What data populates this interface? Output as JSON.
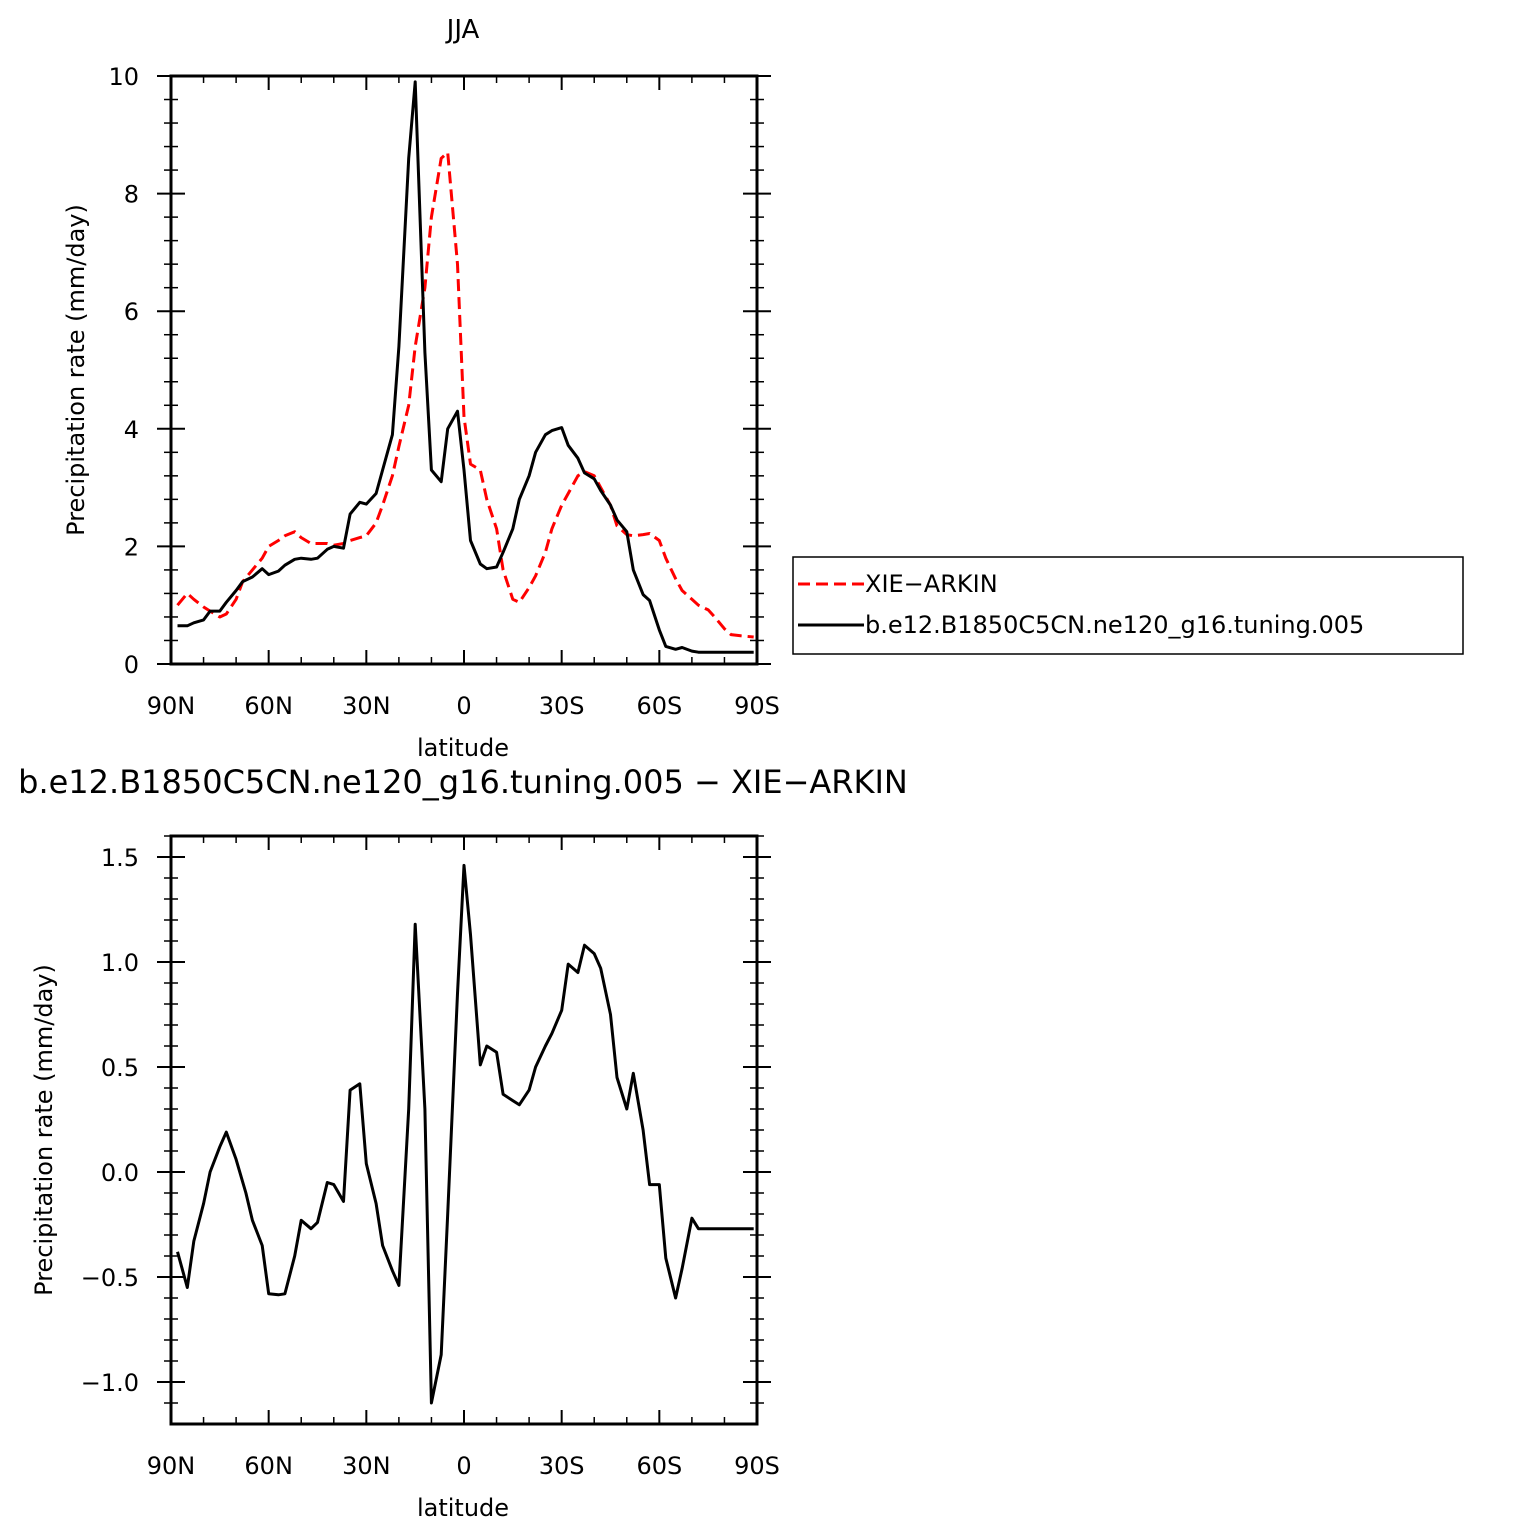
{
  "chart_data": [
    {
      "type": "line",
      "title": "JJA",
      "xlabel": "latitude",
      "ylabel": "Precipitation rate (mm/day)",
      "xlim": [
        90,
        -90
      ],
      "ylim": [
        0,
        10
      ],
      "x_ticks": [
        90,
        60,
        30,
        0,
        -30,
        -60,
        -90
      ],
      "x_tick_labels": [
        "90N",
        "60N",
        "30N",
        "0",
        "30S",
        "60S",
        "90S"
      ],
      "y_ticks": [
        0,
        2,
        4,
        6,
        8,
        10
      ],
      "y_tick_labels": [
        "0",
        "2",
        "4",
        "6",
        "8",
        "10"
      ],
      "legend": "right",
      "series": [
        {
          "name": "XIE−ARKIN",
          "color": "#ff0000",
          "style": "dashed",
          "x": [
            88,
            85,
            83,
            80,
            78,
            75,
            73,
            70,
            68,
            65,
            62,
            60,
            57,
            55,
            52,
            50,
            47,
            45,
            42,
            40,
            37,
            35,
            32,
            30,
            27,
            25,
            22,
            20,
            17,
            15,
            12,
            10,
            7,
            5,
            2,
            0,
            -2,
            -5,
            -7,
            -10,
            -12,
            -15,
            -17,
            -20,
            -22,
            -25,
            -27,
            -30,
            -32,
            -35,
            -37,
            -40,
            -42,
            -45,
            -47,
            -50,
            -52,
            -55,
            -57,
            -60,
            -62,
            -65,
            -67,
            -70,
            -72,
            -75,
            -77,
            -80,
            -82,
            -85,
            -87,
            -89
          ],
          "y": [
            1.0,
            1.2,
            1.1,
            0.97,
            0.9,
            0.8,
            0.85,
            1.1,
            1.4,
            1.6,
            1.8,
            2.0,
            2.1,
            2.18,
            2.25,
            2.15,
            2.05,
            2.05,
            2.05,
            2.02,
            2.05,
            2.1,
            2.15,
            2.18,
            2.4,
            2.7,
            3.2,
            3.7,
            4.4,
            5.4,
            6.4,
            7.6,
            8.6,
            8.7,
            6.8,
            4.2,
            3.4,
            3.3,
            2.8,
            2.3,
            1.6,
            1.1,
            1.05,
            1.3,
            1.5,
            1.9,
            2.3,
            2.7,
            2.9,
            3.2,
            3.27,
            3.2,
            3.0,
            2.7,
            2.35,
            2.2,
            2.18,
            2.2,
            2.22,
            2.1,
            1.8,
            1.45,
            1.25,
            1.1,
            1.0,
            0.92,
            0.8,
            0.6,
            0.5,
            0.48,
            0.47,
            0.46
          ]
        },
        {
          "name": "b.e12.B1850C5CN.ne120_g16.tuning.005",
          "color": "#000000",
          "style": "solid",
          "x": [
            88,
            85,
            83,
            80,
            78,
            75,
            73,
            70,
            68,
            65,
            62,
            60,
            57,
            55,
            52,
            50,
            47,
            45,
            42,
            40,
            37,
            35,
            32,
            30,
            27,
            25,
            22,
            20,
            17,
            15,
            12,
            10,
            7,
            5,
            2,
            0,
            -2,
            -5,
            -7,
            -10,
            -12,
            -15,
            -17,
            -20,
            -22,
            -25,
            -27,
            -30,
            -32,
            -35,
            -37,
            -40,
            -42,
            -45,
            -47,
            -50,
            -52,
            -55,
            -57,
            -60,
            -62,
            -65,
            -67,
            -70,
            -72,
            -75,
            -77,
            -80,
            -82,
            -85,
            -87,
            -89
          ],
          "y": [
            0.65,
            0.65,
            0.7,
            0.75,
            0.9,
            0.9,
            1.05,
            1.25,
            1.4,
            1.48,
            1.62,
            1.52,
            1.58,
            1.68,
            1.78,
            1.8,
            1.78,
            1.8,
            1.95,
            2.0,
            1.97,
            2.55,
            2.75,
            2.72,
            2.9,
            3.3,
            3.9,
            5.4,
            8.6,
            9.9,
            5.3,
            3.3,
            3.1,
            4.0,
            4.3,
            3.3,
            2.1,
            1.7,
            1.62,
            1.65,
            1.9,
            2.3,
            2.8,
            3.2,
            3.6,
            3.9,
            3.97,
            4.02,
            3.72,
            3.5,
            3.25,
            3.15,
            2.95,
            2.7,
            2.45,
            2.25,
            1.6,
            1.18,
            1.08,
            0.58,
            0.3,
            0.25,
            0.28,
            0.22,
            0.2,
            0.2,
            0.2,
            0.2,
            0.2,
            0.2,
            0.2,
            0.2
          ]
        }
      ]
    },
    {
      "type": "line",
      "title": "b.e12.B1850C5CN.ne120_g16.tuning.005 − XIE−ARKIN",
      "xlabel": "latitude",
      "ylabel": "Precipitation rate (mm/day)",
      "xlim": [
        90,
        -90
      ],
      "ylim": [
        -1.2,
        1.6
      ],
      "x_ticks": [
        90,
        60,
        30,
        0,
        -30,
        -60,
        -90
      ],
      "x_tick_labels": [
        "90N",
        "60N",
        "30N",
        "0",
        "30S",
        "60S",
        "90S"
      ],
      "y_ticks": [
        1.5,
        1.0,
        0.5,
        0.0,
        -0.5,
        -1.0
      ],
      "y_tick_labels": [
        "1.5",
        "1.0",
        "0.5",
        "0.0",
        "−0.5",
        "−1.0"
      ],
      "series": [
        {
          "color": "#000000",
          "style": "solid",
          "x": [
            88,
            85,
            83,
            80,
            78,
            75,
            73,
            70,
            67,
            65,
            62,
            60,
            57,
            55,
            52,
            50,
            47,
            45,
            42,
            40,
            37,
            35,
            32,
            30,
            27,
            25,
            22,
            20,
            17,
            15,
            12,
            10,
            7,
            5,
            2,
            0,
            -2,
            -5,
            -7,
            -10,
            -12,
            -15,
            -17,
            -20,
            -22,
            -25,
            -27,
            -30,
            -32,
            -35,
            -37,
            -40,
            -42,
            -45,
            -47,
            -50,
            -52,
            -55,
            -57,
            -60,
            -62,
            -65,
            -67,
            -70,
            -72,
            -75,
            -77,
            -80,
            -82,
            -85,
            -87,
            -89
          ],
          "y": [
            -0.38,
            -0.55,
            -0.33,
            -0.15,
            0.0,
            0.12,
            0.19,
            0.06,
            -0.1,
            -0.23,
            -0.35,
            -0.58,
            -0.585,
            -0.58,
            -0.4,
            -0.23,
            -0.27,
            -0.24,
            -0.05,
            -0.06,
            -0.14,
            0.39,
            0.42,
            0.04,
            -0.15,
            -0.35,
            -0.47,
            -0.54,
            0.3,
            1.18,
            0.3,
            -1.1,
            -0.87,
            -0.2,
            0.85,
            1.46,
            1.13,
            0.51,
            0.6,
            0.57,
            0.37,
            0.34,
            0.32,
            0.39,
            0.5,
            0.6,
            0.66,
            0.77,
            0.99,
            0.95,
            1.08,
            1.04,
            0.97,
            0.75,
            0.45,
            0.3,
            0.47,
            0.2,
            -0.06,
            -0.06,
            -0.41,
            -0.6,
            -0.46,
            -0.22,
            -0.27,
            -0.27,
            -0.27,
            -0.27,
            -0.27,
            -0.27,
            -0.27,
            -0.27
          ]
        }
      ]
    }
  ]
}
